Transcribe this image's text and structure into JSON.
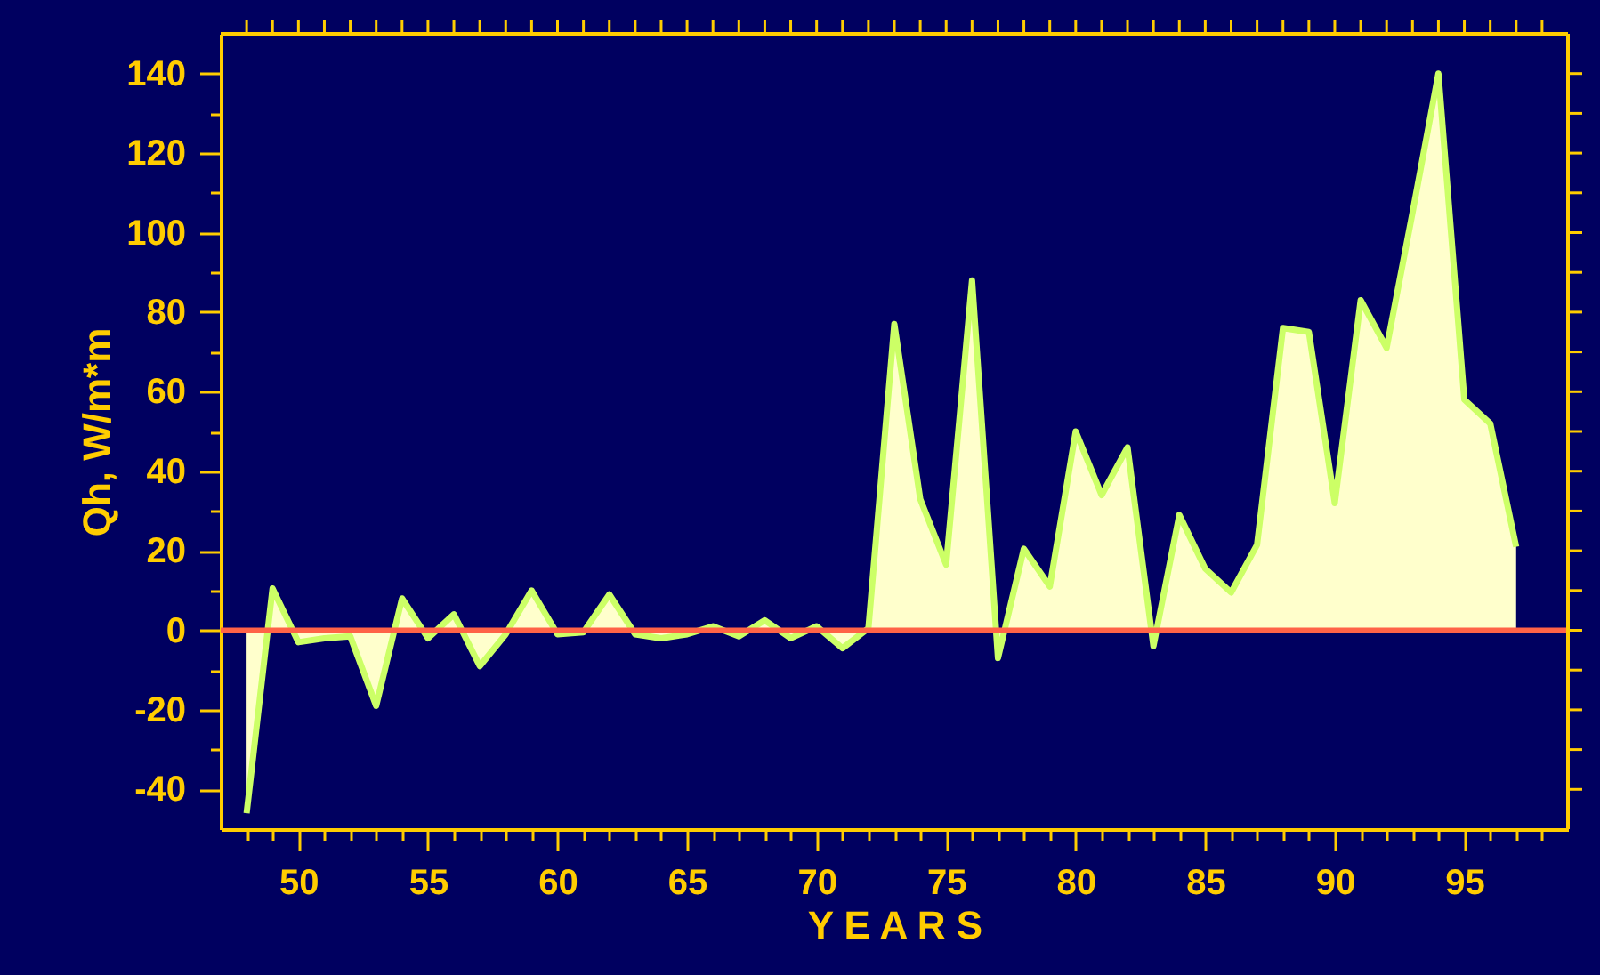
{
  "chart_data": {
    "type": "area",
    "xlabel": "Y E A R S",
    "ylabel": "Qh, W/m*m",
    "x": [
      48,
      49,
      50,
      51,
      52,
      53,
      54,
      55,
      56,
      57,
      58,
      59,
      60,
      61,
      62,
      63,
      64,
      65,
      66,
      67,
      68,
      69,
      70,
      71,
      72,
      73,
      74,
      75,
      76,
      77,
      78,
      79,
      80,
      81,
      82,
      83,
      84,
      85,
      86,
      87,
      88,
      89,
      90,
      91,
      92,
      93,
      94,
      95,
      96,
      97
    ],
    "series": [
      {
        "color": "#ccff66",
        "values": [
          -46,
          10.5,
          -3,
          -2,
          -1.5,
          -19,
          8,
          -2,
          4,
          -9,
          -1,
          10,
          -1,
          -0.5,
          9,
          -1,
          -2,
          -1,
          1,
          -1.5,
          2.5,
          -2,
          1,
          -4.5,
          0.5,
          77,
          33,
          16.5,
          88,
          -7,
          20.5,
          11,
          50,
          34,
          46,
          -4,
          29,
          15.5,
          9.5,
          21.5,
          76,
          75,
          32,
          83,
          71,
          105,
          140,
          58,
          52,
          21
        ]
      }
    ],
    "xlim": [
      47,
      99
    ],
    "ylim": [
      -50,
      150
    ],
    "xticks": [
      {
        "value": 48,
        "label": null
      },
      {
        "value": 49,
        "label": null
      },
      50,
      {
        "value": 51,
        "label": null
      },
      {
        "value": 52,
        "label": null
      },
      {
        "value": 53,
        "label": null
      },
      {
        "value": 54,
        "label": null
      },
      55,
      {
        "value": 56,
        "label": null
      },
      {
        "value": 57,
        "label": null
      },
      {
        "value": 58,
        "label": null
      },
      {
        "value": 59,
        "label": null
      },
      60,
      {
        "value": 61,
        "label": null
      },
      {
        "value": 62,
        "label": null
      },
      {
        "value": 63,
        "label": null
      },
      {
        "value": 64,
        "label": null
      },
      65,
      {
        "value": 66,
        "label": null
      },
      {
        "value": 67,
        "label": null
      },
      {
        "value": 68,
        "label": null
      },
      {
        "value": 69,
        "label": null
      },
      70,
      {
        "value": 71,
        "label": null
      },
      {
        "value": 72,
        "label": null
      },
      {
        "value": 73,
        "label": null
      },
      {
        "value": 74,
        "label": null
      },
      75,
      {
        "value": 76,
        "label": null
      },
      {
        "value": 77,
        "label": null
      },
      {
        "value": 78,
        "label": null
      },
      {
        "value": 79,
        "label": null
      },
      80,
      {
        "value": 81,
        "label": null
      },
      {
        "value": 82,
        "label": null
      },
      {
        "value": 83,
        "label": null
      },
      {
        "value": 84,
        "label": null
      },
      85,
      {
        "value": 86,
        "label": null
      },
      {
        "value": 87,
        "label": null
      },
      {
        "value": 88,
        "label": null
      },
      {
        "value": 89,
        "label": null
      },
      90,
      {
        "value": 91,
        "label": null
      },
      {
        "value": 92,
        "label": null
      },
      {
        "value": 93,
        "label": null
      },
      {
        "value": 94,
        "label": null
      },
      95,
      {
        "value": 96,
        "label": null
      },
      {
        "value": 97,
        "label": null
      },
      {
        "value": 98,
        "label": null
      }
    ],
    "yticks": [
      -40,
      {
        "value": -30,
        "label": null
      },
      -20,
      {
        "value": -10,
        "label": null
      },
      0,
      {
        "value": 10,
        "label": null
      },
      20,
      {
        "value": 30,
        "label": null
      },
      40,
      {
        "value": 50,
        "label": null
      },
      60,
      {
        "value": 70,
        "label": null
      },
      80,
      {
        "value": 90,
        "label": null
      },
      100,
      {
        "value": 110,
        "label": null
      },
      120,
      {
        "value": 130,
        "label": null
      },
      140
    ],
    "ref_lines": [
      {
        "axis": "y",
        "value": 0,
        "color": "#ff6347"
      }
    ],
    "grid": false
  }
}
